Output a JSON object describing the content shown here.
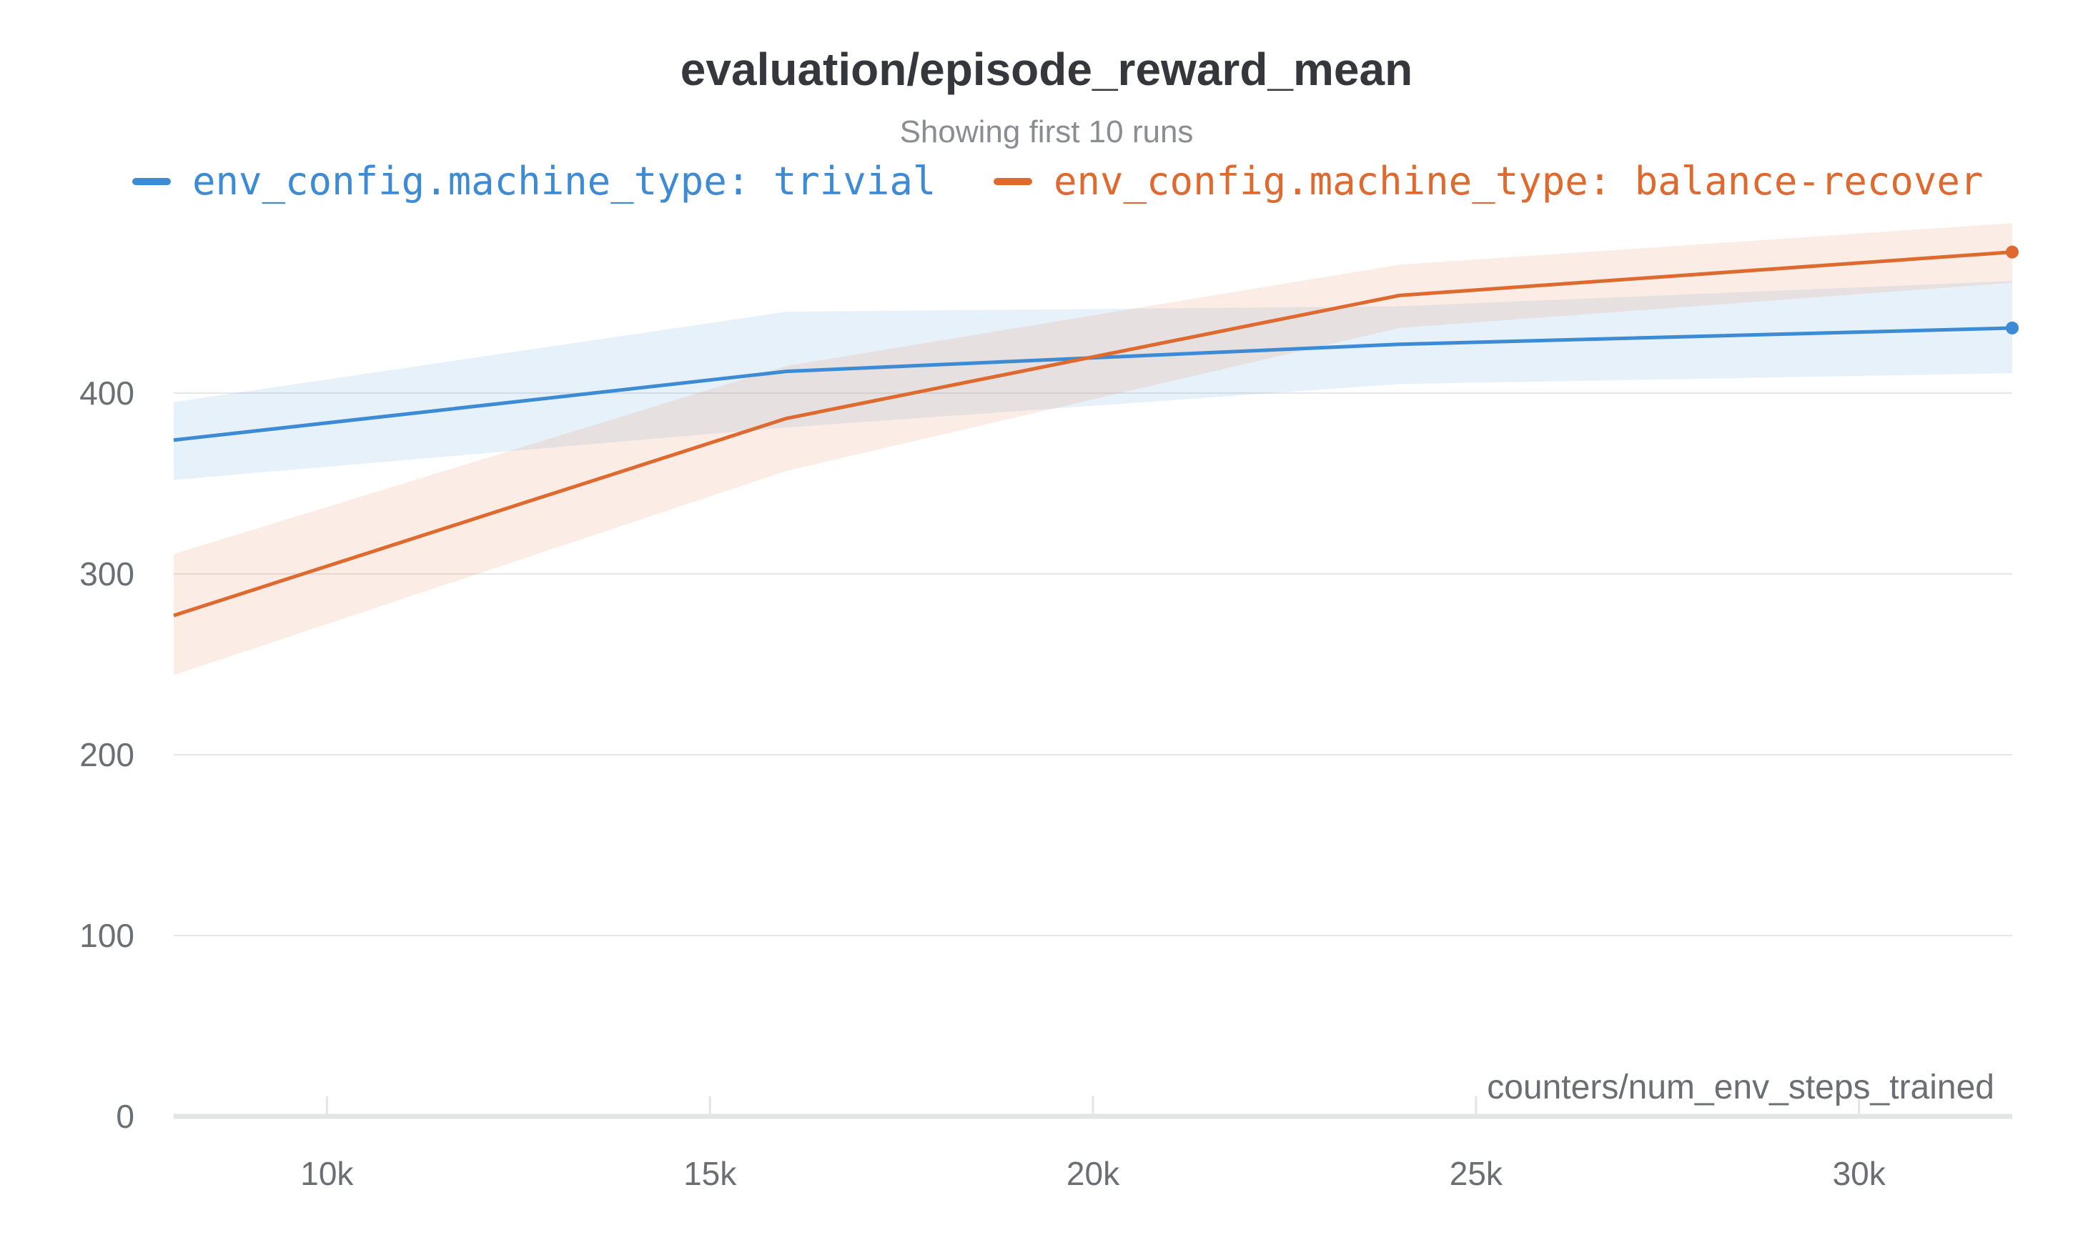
{
  "chart_data": {
    "type": "line",
    "title": "evaluation/episode_reward_mean",
    "subtitle": "Showing first 10 runs",
    "xlabel": "counters/num_env_steps_trained",
    "ylabel": "",
    "xlim": [
      8000,
      32000
    ],
    "ylim": [
      0,
      500
    ],
    "grid": true,
    "legend_position": "top",
    "x_ticks": [
      10000,
      15000,
      20000,
      25000,
      30000
    ],
    "x_tick_labels": [
      "10k",
      "15k",
      "20k",
      "25k",
      "30k"
    ],
    "y_ticks": [
      0,
      100,
      200,
      300,
      400
    ],
    "y_tick_labels": [
      "0",
      "100",
      "200",
      "300",
      "400"
    ],
    "series": [
      {
        "name": "env_config.machine_type: trivial",
        "color": "#3d8bd4",
        "band_color": "#e8f1fb",
        "x": [
          8000,
          16000,
          24000,
          32000
        ],
        "y": [
          374,
          412,
          427,
          436
        ],
        "y_upper": [
          395,
          445,
          448,
          462
        ],
        "y_lower": [
          352,
          381,
          405,
          411
        ]
      },
      {
        "name": "env_config.machine_type: balance-recover",
        "color": "#de6a2f",
        "band_color": "#fcebe2",
        "x": [
          8000,
          16000,
          24000,
          32000
        ],
        "y": [
          277,
          386,
          454,
          478
        ],
        "y_upper": [
          311,
          415,
          471,
          494
        ],
        "y_lower": [
          244,
          357,
          436,
          461
        ]
      }
    ]
  }
}
